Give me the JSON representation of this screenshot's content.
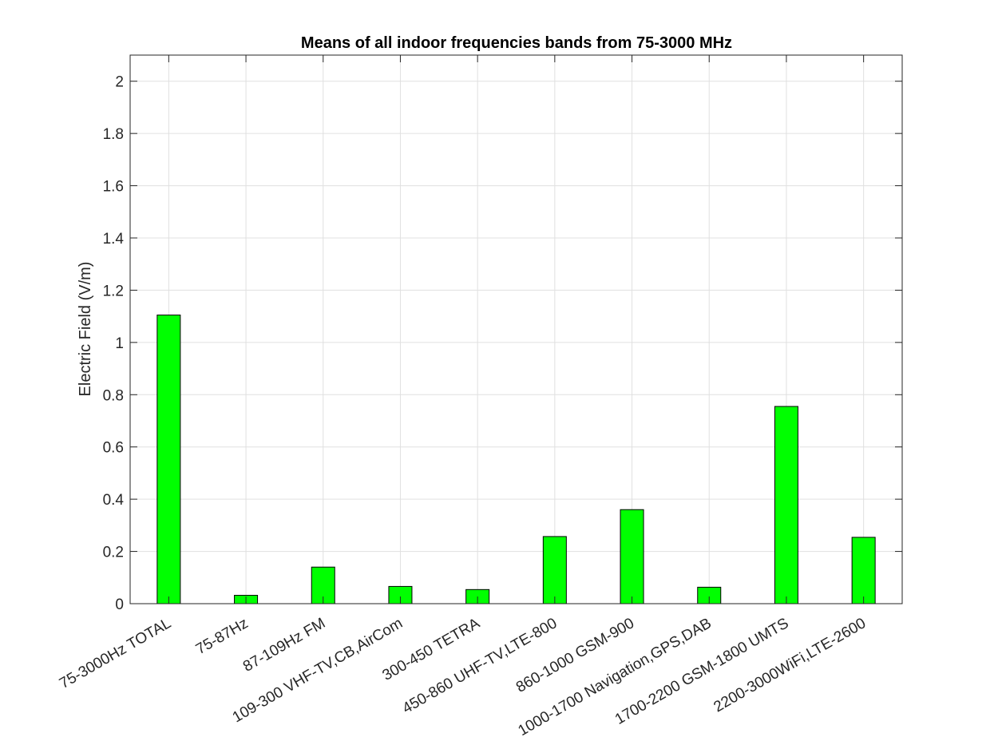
{
  "chart_data": {
    "type": "bar",
    "title": "Means of all indoor frequencies bands from 75-3000 MHz",
    "xlabel": "",
    "ylabel": "Electric Field (V/m)",
    "ylim": [
      0,
      2.1
    ],
    "yticks": [
      0,
      0.2,
      0.4,
      0.6,
      0.8,
      1,
      1.2,
      1.4,
      1.6,
      1.8,
      2
    ],
    "ytick_labels": [
      "0",
      "0.2",
      "0.4",
      "0.6",
      "0.8",
      "1",
      "1.2",
      "1.4",
      "1.6",
      "1.8",
      "2"
    ],
    "categories": [
      "75-3000Hz TOTAL",
      "75-87Hz",
      "87-109Hz FM",
      "109-300 VHF-TV,CB,AirCom",
      "300-450 TETRA",
      "450-860 UHF-TV,LTE-800",
      "860-1000 GSM-900",
      "1000-1700 Navigation,GPS,DAB",
      "1700-2200 GSM-1800 UMTS",
      "2200-3000WiFi,LTE-2600"
    ],
    "values": [
      1.105,
      0.032,
      0.14,
      0.066,
      0.054,
      0.257,
      0.36,
      0.063,
      0.755,
      0.254
    ],
    "grid": true,
    "legend": "none",
    "bar_color": "#00ff00",
    "bar_edge_color": "#000000",
    "grid_color": "#e0e0e0",
    "axis_color": "#262626"
  }
}
